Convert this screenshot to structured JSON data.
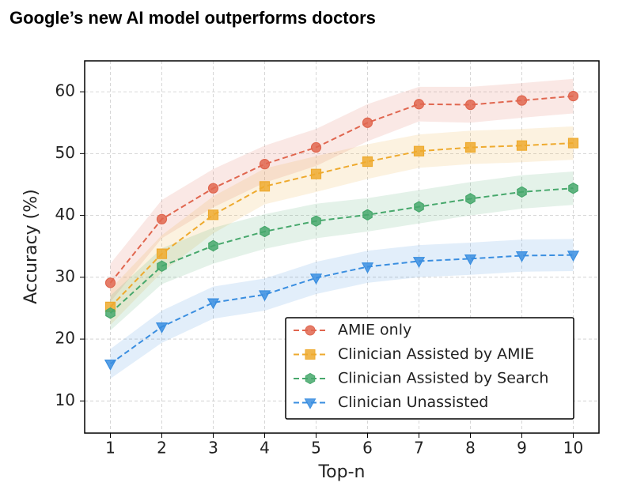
{
  "chart_data": {
    "type": "line",
    "title": "Google’s new AI model outperforms doctors",
    "x_label": "Top-n",
    "y_label": "Accuracy (%)",
    "x": [
      1,
      2,
      3,
      4,
      5,
      6,
      7,
      8,
      9,
      10
    ],
    "xlim": [
      0.5,
      10.5
    ],
    "xticks": [
      1,
      2,
      3,
      4,
      5,
      6,
      7,
      8,
      9,
      10
    ],
    "ylim": [
      4.8,
      65
    ],
    "yticks": [
      10,
      20,
      30,
      40,
      50,
      60
    ],
    "grid": true,
    "legend": "lower right",
    "series": [
      {
        "name": "AMIE only",
        "color": "#e0664f",
        "marker": "circle",
        "values": [
          29.1,
          39.4,
          44.4,
          48.3,
          51.0,
          55.0,
          58.0,
          57.9,
          58.6,
          59.3
        ],
        "lower": [
          26.0,
          36.3,
          41.3,
          45.3,
          48.0,
          52.0,
          55.2,
          55.0,
          55.8,
          56.5
        ],
        "upper": [
          32.2,
          42.5,
          47.5,
          51.3,
          54.0,
          58.0,
          60.8,
          60.8,
          61.4,
          62.1
        ]
      },
      {
        "name": "Clinician Assisted by AMIE",
        "color": "#eeaa2e",
        "marker": "square",
        "values": [
          25.2,
          33.8,
          40.1,
          44.7,
          46.7,
          48.7,
          50.4,
          51.0,
          51.3,
          51.7
        ],
        "lower": [
          22.3,
          30.8,
          37.1,
          41.8,
          43.8,
          45.9,
          47.7,
          48.3,
          48.6,
          49.0
        ],
        "upper": [
          28.1,
          36.8,
          43.1,
          47.6,
          49.6,
          51.5,
          53.1,
          53.7,
          54.0,
          54.4
        ]
      },
      {
        "name": "Clinician Assisted by Search",
        "color": "#47a86c",
        "marker": "hexagon",
        "values": [
          24.2,
          31.8,
          35.1,
          37.4,
          39.1,
          40.1,
          41.4,
          42.7,
          43.8,
          44.4
        ],
        "lower": [
          21.4,
          28.9,
          32.2,
          34.6,
          36.3,
          37.4,
          38.7,
          40.0,
          41.1,
          41.7
        ],
        "upper": [
          27.0,
          34.7,
          38.0,
          40.2,
          41.9,
          42.8,
          44.1,
          45.4,
          46.5,
          47.1
        ]
      },
      {
        "name": "Clinician Unassisted",
        "color": "#3a8ee0",
        "marker": "triangle-down",
        "values": [
          16.0,
          22.0,
          25.9,
          27.2,
          29.9,
          31.7,
          32.6,
          33.0,
          33.5,
          33.6
        ],
        "lower": [
          13.6,
          19.4,
          23.3,
          24.6,
          27.3,
          29.1,
          30.0,
          30.4,
          30.9,
          31.0
        ],
        "upper": [
          18.4,
          24.6,
          28.5,
          29.8,
          32.5,
          34.3,
          35.2,
          35.6,
          36.1,
          36.2
        ]
      }
    ]
  }
}
